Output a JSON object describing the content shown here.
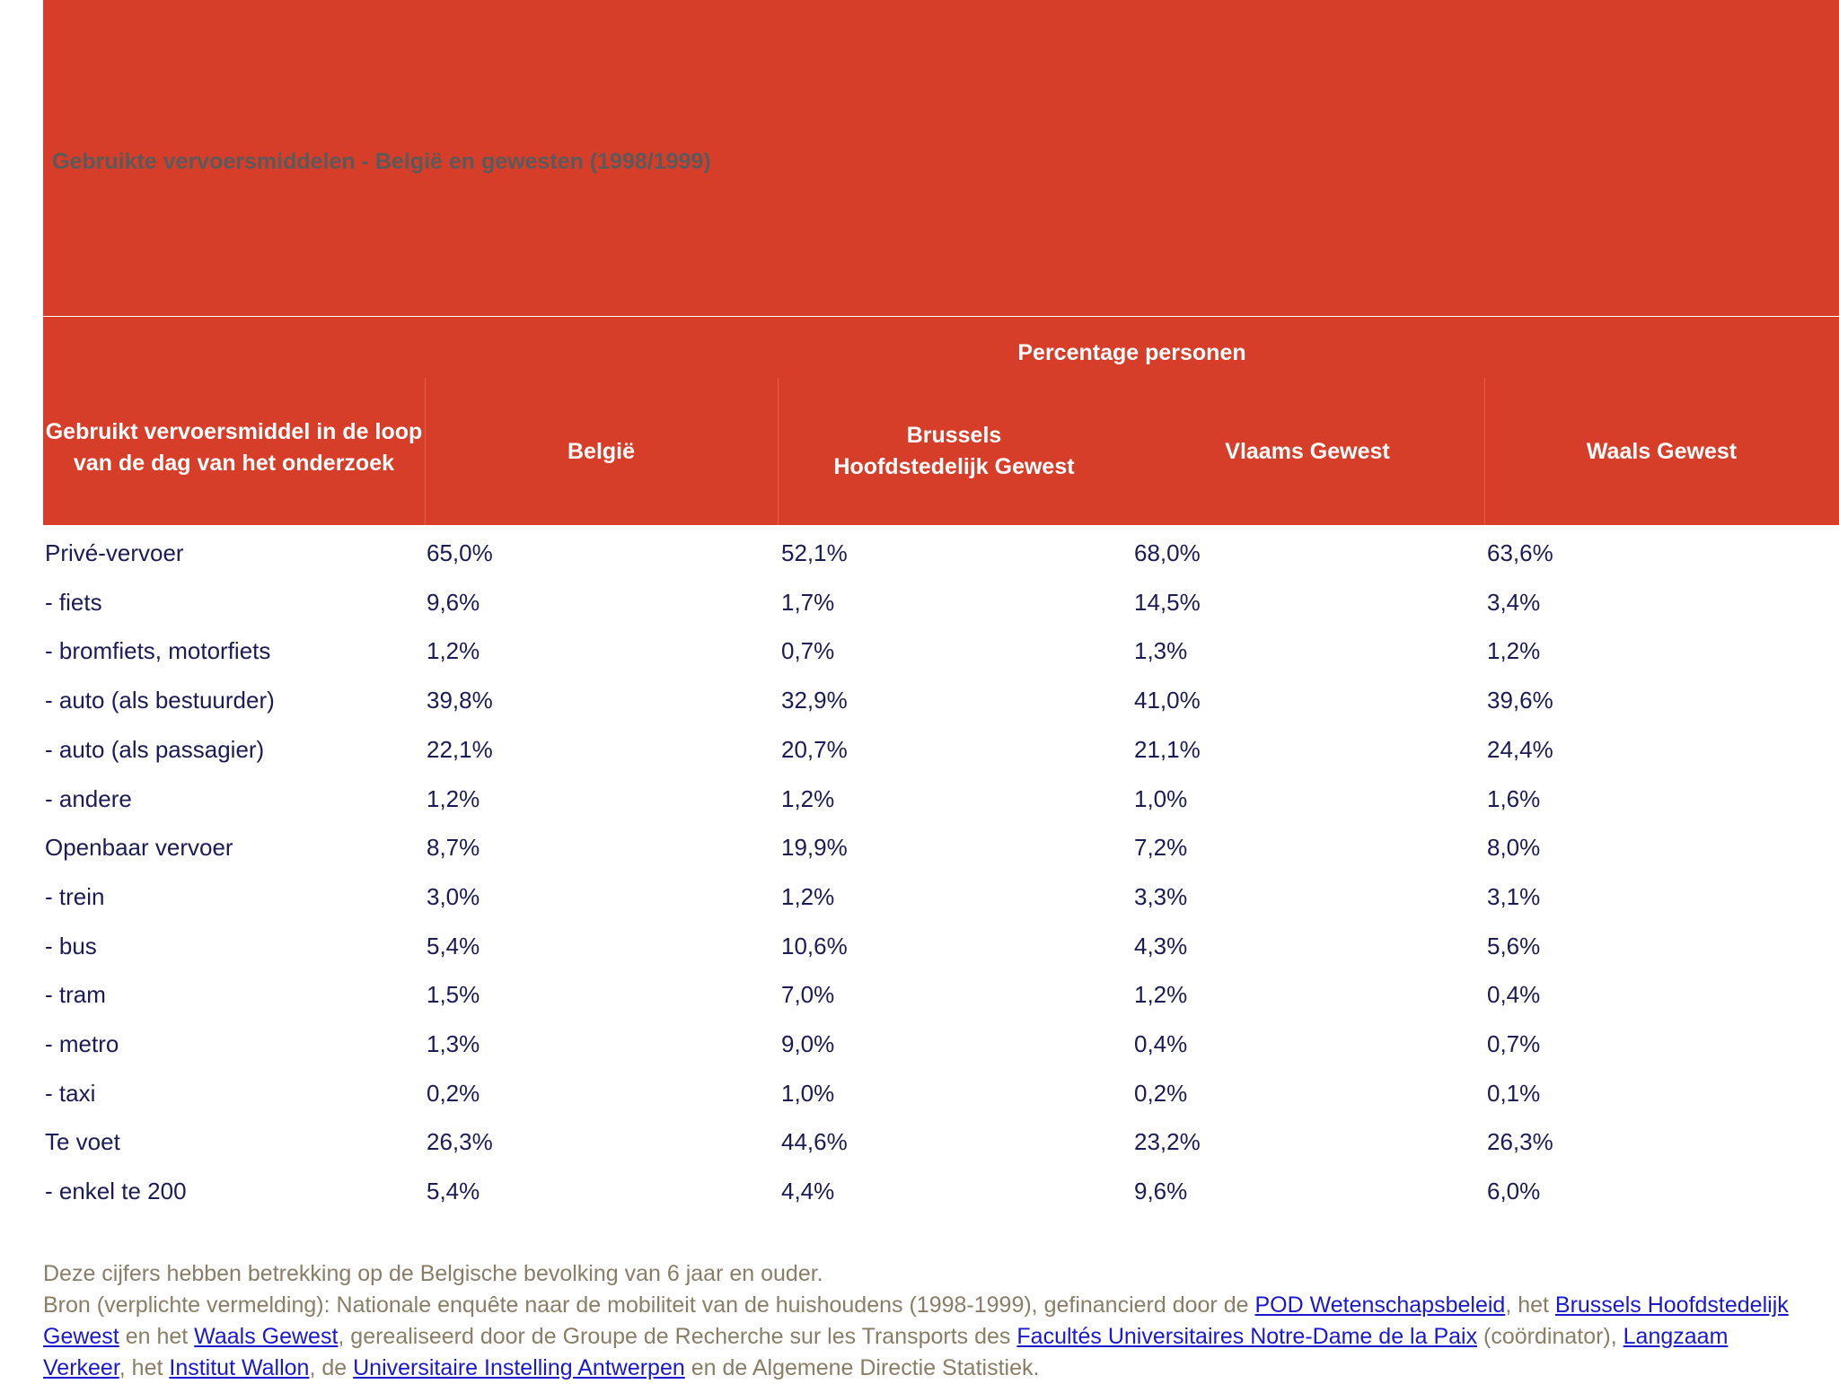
{
  "title": "Gebruikte vervoersmiddelen - België en gewesten (1998/1999)",
  "table": {
    "group_header": "Percentage personen",
    "row_header": "Gebruikt vervoersmiddel in de loop van de dag van het onderzoek",
    "columns": [
      "België",
      "Brussels Hoofdstedelijk Gewest",
      "Vlaams Gewest",
      "Waals Gewest"
    ],
    "rows": [
      [
        "Privé-vervoer",
        "65,0%",
        "52,1%",
        "68,0%",
        "63,6%"
      ],
      [
        "- fiets",
        "9,6%",
        "1,7%",
        "14,5%",
        "3,4%"
      ],
      [
        "- bromfiets, motorfiets",
        "1,2%",
        "0,7%",
        "1,3%",
        "1,2%"
      ],
      [
        "- auto (als bestuurder)",
        "39,8%",
        "32,9%",
        "41,0%",
        "39,6%"
      ],
      [
        "- auto (als passagier)",
        "22,1%",
        "20,7%",
        "21,1%",
        "24,4%"
      ],
      [
        "- andere",
        "1,2%",
        "1,2%",
        "1,0%",
        "1,6%"
      ],
      [
        "Openbaar vervoer",
        "8,7%",
        "19,9%",
        "7,2%",
        "8,0%"
      ],
      [
        "- trein",
        "3,0%",
        "1,2%",
        "3,3%",
        "3,1%"
      ],
      [
        "- bus",
        "5,4%",
        "10,6%",
        "4,3%",
        "5,6%"
      ],
      [
        "- tram",
        "1,5%",
        "7,0%",
        "1,2%",
        "0,4%"
      ],
      [
        "- metro",
        "1,3%",
        "9,0%",
        "0,4%",
        "0,7%"
      ],
      [
        "- taxi",
        "0,2%",
        "1,0%",
        "0,2%",
        "0,1%"
      ],
      [
        "Te voet",
        "26,3%",
        "44,6%",
        "23,2%",
        "26,3%"
      ],
      [
        "- enkel te 200",
        "5,4%",
        "4,4%",
        "9,6%",
        "6,0%"
      ]
    ]
  },
  "footer": {
    "note": "Deze cijfers hebben betrekking op de Belgische bevolking van 6 jaar en ouder.",
    "source": [
      "Bron (verplichte vermelding): Nationale enquête naar de mobiliteit van de huishoudens (1998-1999), gefinancierd door de ",
      {
        "text": "POD Wetenschapsbeleid",
        "link": true
      },
      ", het ",
      {
        "text": "Brussels Hoofdstedelijk Gewest",
        "link": true
      },
      " en het ",
      {
        "text": "Waals Gewest",
        "link": true
      },
      ", gerealiseerd door de Groupe de Recherche sur les Transports des ",
      {
        "text": "Facultés Universitaires Notre-Dame de la Paix",
        "link": true
      },
      " (coördinator), ",
      {
        "text": "Langzaam Verkeer",
        "link": true
      },
      ", het ",
      {
        "text": "Institut Wallon",
        "link": true
      },
      ", de ",
      {
        "text": "Universitaire Instelling Antwerpen",
        "link": true
      },
      " en de Algemene Directie Statistiek."
    ]
  }
}
